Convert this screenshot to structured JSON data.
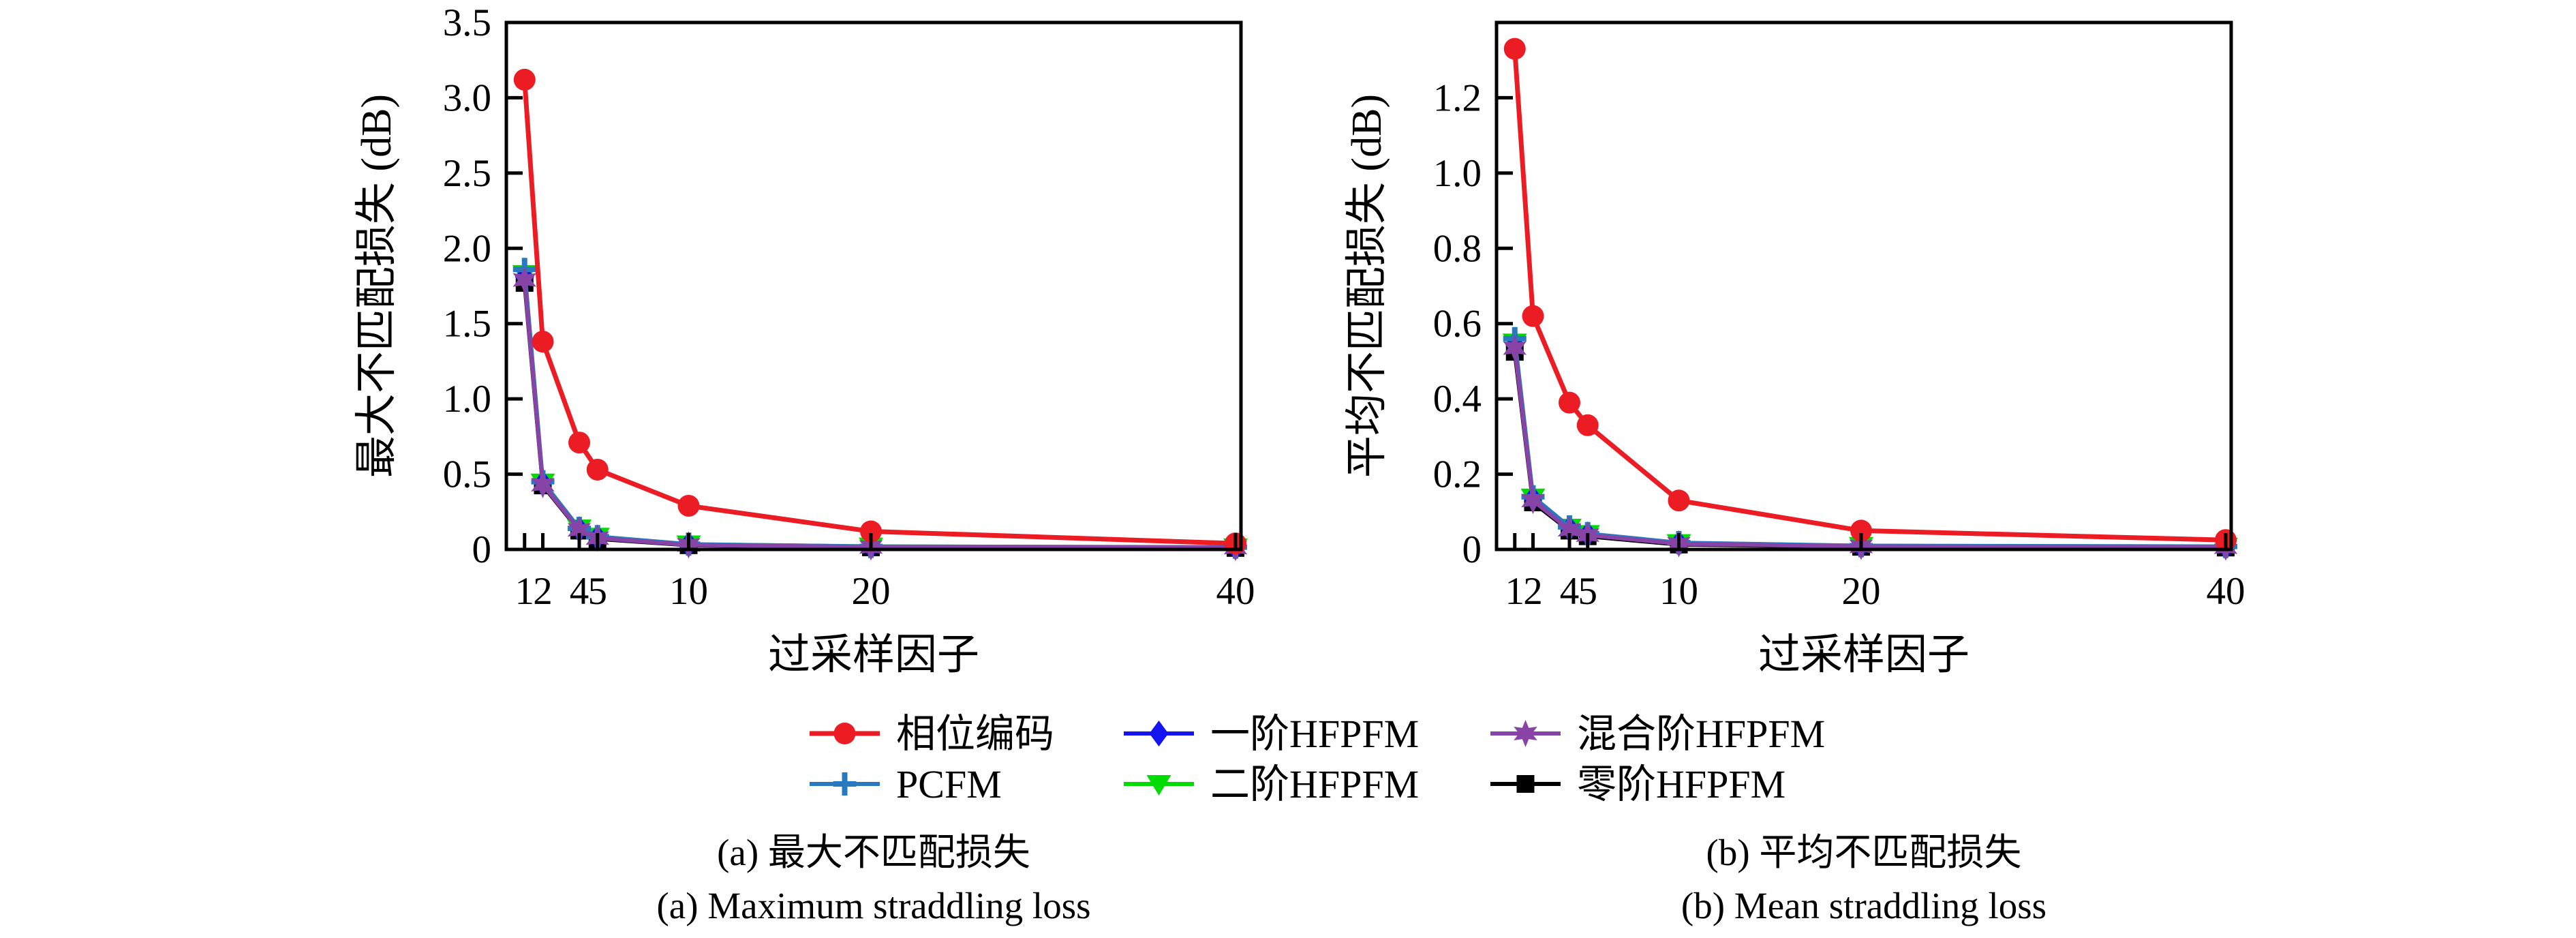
{
  "page": {
    "background": "#ffffff",
    "axis_color": "#000000"
  },
  "chart_data": [
    {
      "type": "line",
      "title_zh": "(a) 最大不匹配损失",
      "title_en": "(a) Maximum straddling loss",
      "xlabel": "过采样因子",
      "ylabel": "最大不匹配损失 (dB)",
      "x": [
        1,
        2,
        4,
        5,
        10,
        20,
        40
      ],
      "xlim": [
        0,
        40.3
      ],
      "ylim": [
        0,
        3.5
      ],
      "xticks": [
        1,
        2,
        4,
        5,
        10,
        20,
        40
      ],
      "xtick_labels": [
        "1",
        "2",
        "4",
        "5",
        "10",
        "20",
        "40"
      ],
      "yticks": [
        0,
        0.5,
        1.0,
        1.5,
        2.0,
        2.5,
        3.0,
        3.5
      ],
      "ytick_labels": [
        "0",
        "0.5",
        "1.0",
        "1.5",
        "2.0",
        "2.5",
        "3.0",
        "3.5"
      ],
      "grid": false,
      "legend_position": "below-center",
      "series": [
        {
          "name": "相位编码",
          "color": "#ec1c24",
          "marker": "circle",
          "values": [
            3.12,
            1.38,
            0.71,
            0.53,
            0.29,
            0.12,
            0.04
          ]
        },
        {
          "name": "PCFM",
          "color": "#2979be",
          "marker": "plus",
          "values": [
            1.86,
            0.45,
            0.14,
            0.085,
            0.035,
            0.02,
            0.015
          ]
        },
        {
          "name": "一阶HFPFM",
          "color": "#1414f0",
          "marker": "diamond",
          "values": [
            1.81,
            0.44,
            0.135,
            0.08,
            0.032,
            0.018,
            0.013
          ]
        },
        {
          "name": "二阶HFPFM",
          "color": "#00dc00",
          "marker": "triangle-down",
          "values": [
            1.83,
            0.445,
            0.14,
            0.085,
            0.034,
            0.02,
            0.014
          ]
        },
        {
          "name": "混合阶HFPFM",
          "color": "#8843a6",
          "marker": "star6",
          "values": [
            1.79,
            0.43,
            0.13,
            0.075,
            0.03,
            0.016,
            0.012
          ]
        },
        {
          "name": "零阶HFPFM",
          "color": "#000000",
          "marker": "square",
          "values": [
            1.77,
            0.425,
            0.125,
            0.07,
            0.028,
            0.014,
            0.01
          ]
        }
      ]
    },
    {
      "type": "line",
      "title_zh": "(b) 平均不匹配损失",
      "title_en": "(b) Mean straddling loss",
      "xlabel": "过采样因子",
      "ylabel": "平均不匹配损失 (dB)",
      "x": [
        1,
        2,
        4,
        5,
        10,
        20,
        40
      ],
      "xlim": [
        0,
        40.3
      ],
      "ylim": [
        0,
        1.4
      ],
      "xticks": [
        1,
        2,
        4,
        5,
        10,
        20,
        40
      ],
      "xtick_labels": [
        "1",
        "2",
        "4",
        "5",
        "10",
        "20",
        "40"
      ],
      "yticks": [
        0,
        0.2,
        0.4,
        0.6,
        0.8,
        1.0,
        1.2
      ],
      "ytick_labels": [
        "0",
        "0.2",
        "0.4",
        "0.6",
        "0.8",
        "1.0",
        "1.2"
      ],
      "grid": false,
      "legend_position": "below-center",
      "series": [
        {
          "name": "相位编码",
          "color": "#ec1c24",
          "marker": "circle",
          "values": [
            1.33,
            0.62,
            0.39,
            0.33,
            0.13,
            0.05,
            0.025
          ]
        },
        {
          "name": "PCFM",
          "color": "#2979be",
          "marker": "plus",
          "values": [
            0.56,
            0.14,
            0.06,
            0.042,
            0.018,
            0.01,
            0.008
          ]
        },
        {
          "name": "一阶HFPFM",
          "color": "#1414f0",
          "marker": "diamond",
          "values": [
            0.545,
            0.135,
            0.056,
            0.04,
            0.016,
            0.009,
            0.007
          ]
        },
        {
          "name": "二阶HFPFM",
          "color": "#00dc00",
          "marker": "triangle-down",
          "values": [
            0.55,
            0.138,
            0.058,
            0.041,
            0.017,
            0.0095,
            0.0075
          ]
        },
        {
          "name": "混合阶HFPFM",
          "color": "#8843a6",
          "marker": "star6",
          "values": [
            0.535,
            0.13,
            0.052,
            0.038,
            0.015,
            0.008,
            0.006
          ]
        },
        {
          "name": "零阶HFPFM",
          "color": "#000000",
          "marker": "square",
          "values": [
            0.525,
            0.125,
            0.05,
            0.035,
            0.013,
            0.007,
            0.005
          ]
        }
      ]
    }
  ]
}
